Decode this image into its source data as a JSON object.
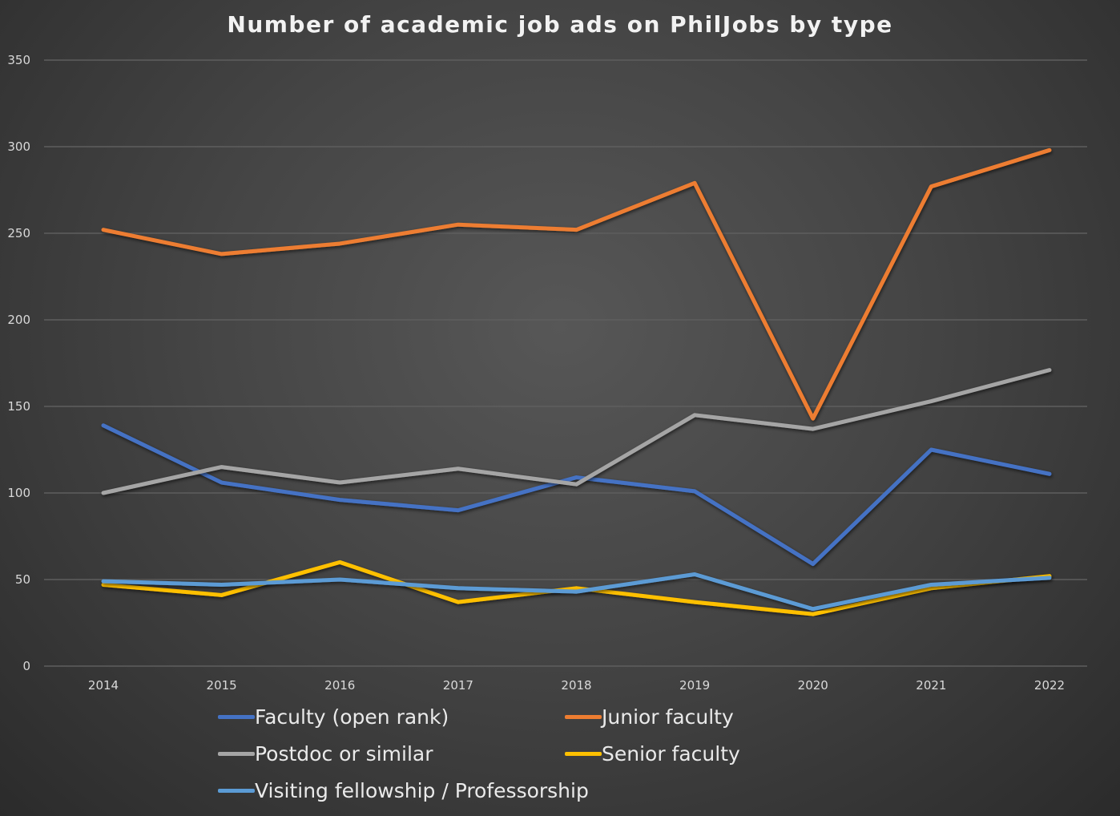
{
  "chart_data": {
    "type": "line",
    "title": "Number of academic job ads on PhilJobs by type",
    "xlabel": "",
    "ylabel": "",
    "categories": [
      "2014",
      "2015",
      "2016",
      "2017",
      "2018",
      "2019",
      "2020",
      "2021",
      "2022"
    ],
    "ylim": [
      0,
      350
    ],
    "yticks": [
      "0",
      "50",
      "100",
      "150",
      "200",
      "250",
      "300",
      "350"
    ],
    "grid": true,
    "legend_position": "bottom",
    "series": [
      {
        "name": "Faculty (open rank)",
        "color": "#4472C4",
        "values": [
          139,
          106,
          96,
          90,
          109,
          101,
          59,
          125,
          111
        ]
      },
      {
        "name": "Junior faculty",
        "color": "#ED7D31",
        "values": [
          252,
          238,
          244,
          255,
          252,
          279,
          143,
          277,
          298
        ]
      },
      {
        "name": "Postdoc or similar",
        "color": "#A5A5A5",
        "values": [
          100,
          115,
          106,
          114,
          105,
          145,
          137,
          153,
          171
        ]
      },
      {
        "name": "Senior faculty",
        "color": "#FFC000",
        "values": [
          47,
          41,
          60,
          37,
          45,
          37,
          30,
          45,
          52
        ]
      },
      {
        "name": "Visiting fellowship / Professorship",
        "color": "#5B9BD5",
        "values": [
          49,
          47,
          50,
          45,
          43,
          53,
          33,
          47,
          51
        ]
      }
    ]
  }
}
